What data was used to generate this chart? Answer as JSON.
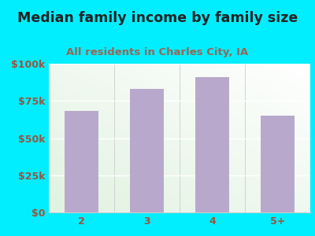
{
  "title": "Median family income by family size",
  "subtitle": "All residents in Charles City, IA",
  "categories": [
    "2",
    "3",
    "4",
    "5+"
  ],
  "values": [
    68000,
    83000,
    91000,
    65000
  ],
  "bar_color": "#b8a9cc",
  "background_outer": "#00eeff",
  "background_inner": "#e8f5e2",
  "title_color": "#222222",
  "subtitle_color": "#9a6655",
  "tick_label_color": "#9a5540",
  "ylim": [
    0,
    100000
  ],
  "yticks": [
    0,
    25000,
    50000,
    75000,
    100000
  ],
  "ytick_labels": [
    "$0",
    "$25k",
    "$50k",
    "$75k",
    "$100k"
  ],
  "title_fontsize": 12.5,
  "subtitle_fontsize": 9.5,
  "tick_fontsize": 9,
  "bar_width": 0.52
}
